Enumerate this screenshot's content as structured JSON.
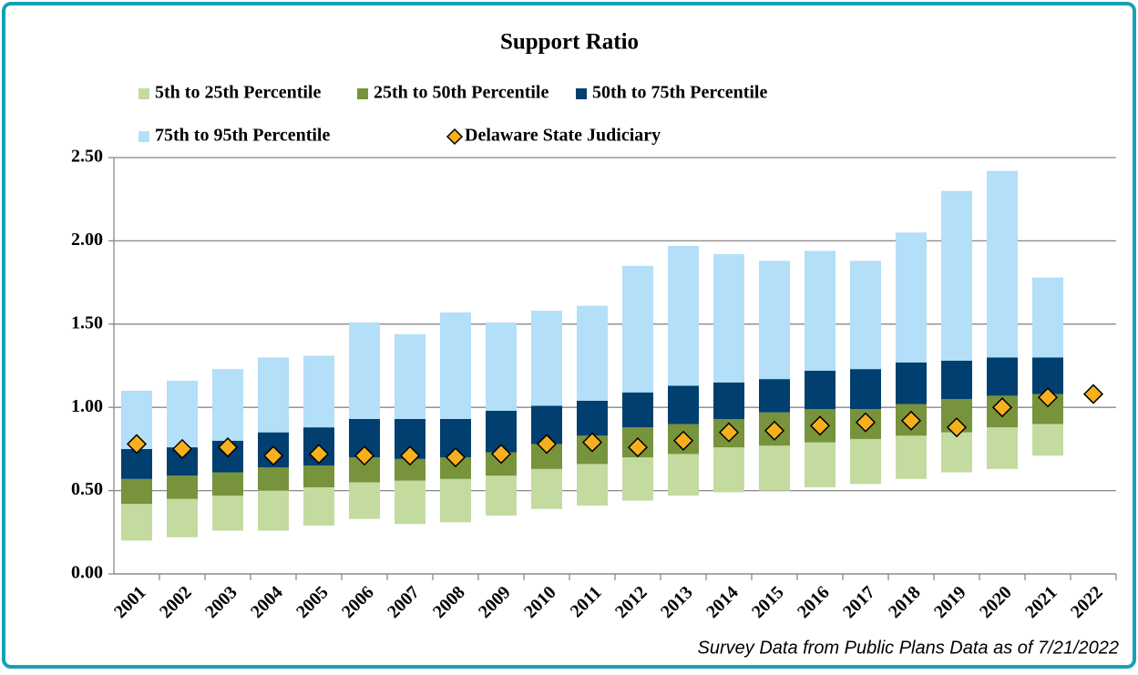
{
  "chart_data": {
    "type": "bar",
    "title": "Support Ratio",
    "footnote": "Survey Data from Public Plans Data as of 7/21/2022",
    "categories": [
      "2001",
      "2002",
      "2003",
      "2004",
      "2005",
      "2006",
      "2007",
      "2008",
      "2009",
      "2010",
      "2011",
      "2012",
      "2013",
      "2014",
      "2015",
      "2016",
      "2017",
      "2018",
      "2019",
      "2020",
      "2021",
      "2022"
    ],
    "series": [
      {
        "name": "5th to 25th Percentile",
        "type": "bar",
        "color": "#c4dba0",
        "values": [
          [
            0.2,
            0.42
          ],
          [
            0.22,
            0.45
          ],
          [
            0.26,
            0.47
          ],
          [
            0.26,
            0.5
          ],
          [
            0.29,
            0.52
          ],
          [
            0.33,
            0.55
          ],
          [
            0.3,
            0.56
          ],
          [
            0.31,
            0.57
          ],
          [
            0.35,
            0.59
          ],
          [
            0.39,
            0.63
          ],
          [
            0.41,
            0.66
          ],
          [
            0.44,
            0.7
          ],
          [
            0.47,
            0.72
          ],
          [
            0.49,
            0.76
          ],
          [
            0.5,
            0.77
          ],
          [
            0.52,
            0.79
          ],
          [
            0.54,
            0.81
          ],
          [
            0.57,
            0.83
          ],
          [
            0.61,
            0.85
          ],
          [
            0.63,
            0.88
          ],
          [
            0.71,
            0.9
          ],
          null
        ]
      },
      {
        "name": "25th to 50th Percentile",
        "type": "bar",
        "color": "#77933c",
        "values": [
          [
            0.42,
            0.57
          ],
          [
            0.45,
            0.59
          ],
          [
            0.47,
            0.61
          ],
          [
            0.5,
            0.64
          ],
          [
            0.52,
            0.65
          ],
          [
            0.55,
            0.7
          ],
          [
            0.56,
            0.69
          ],
          [
            0.57,
            0.7
          ],
          [
            0.59,
            0.73
          ],
          [
            0.63,
            0.78
          ],
          [
            0.66,
            0.83
          ],
          [
            0.7,
            0.88
          ],
          [
            0.72,
            0.9
          ],
          [
            0.76,
            0.93
          ],
          [
            0.77,
            0.97
          ],
          [
            0.79,
            0.99
          ],
          [
            0.81,
            0.99
          ],
          [
            0.83,
            1.02
          ],
          [
            0.85,
            1.05
          ],
          [
            0.88,
            1.07
          ],
          [
            0.9,
            1.08
          ],
          null
        ]
      },
      {
        "name": "50th to 75th Percentile",
        "type": "bar",
        "color": "#003f6f",
        "values": [
          [
            0.57,
            0.75
          ],
          [
            0.59,
            0.76
          ],
          [
            0.61,
            0.8
          ],
          [
            0.64,
            0.85
          ],
          [
            0.65,
            0.88
          ],
          [
            0.7,
            0.93
          ],
          [
            0.69,
            0.93
          ],
          [
            0.7,
            0.93
          ],
          [
            0.73,
            0.98
          ],
          [
            0.78,
            1.01
          ],
          [
            0.83,
            1.04
          ],
          [
            0.88,
            1.09
          ],
          [
            0.9,
            1.13
          ],
          [
            0.93,
            1.15
          ],
          [
            0.97,
            1.17
          ],
          [
            0.99,
            1.22
          ],
          [
            0.99,
            1.23
          ],
          [
            1.02,
            1.27
          ],
          [
            1.05,
            1.28
          ],
          [
            1.07,
            1.3
          ],
          [
            1.08,
            1.3
          ],
          null
        ]
      },
      {
        "name": "75th to 95th Percentile",
        "type": "bar",
        "color": "#b3dff9",
        "values": [
          [
            0.75,
            1.1
          ],
          [
            0.76,
            1.16
          ],
          [
            0.8,
            1.23
          ],
          [
            0.85,
            1.3
          ],
          [
            0.88,
            1.31
          ],
          [
            0.93,
            1.51
          ],
          [
            0.93,
            1.44
          ],
          [
            0.93,
            1.57
          ],
          [
            0.98,
            1.51
          ],
          [
            1.01,
            1.58
          ],
          [
            1.04,
            1.61
          ],
          [
            1.09,
            1.85
          ],
          [
            1.13,
            1.97
          ],
          [
            1.15,
            1.92
          ],
          [
            1.17,
            1.88
          ],
          [
            1.22,
            1.94
          ],
          [
            1.23,
            1.88
          ],
          [
            1.27,
            2.05
          ],
          [
            1.28,
            2.3
          ],
          [
            1.3,
            2.42
          ],
          [
            1.3,
            1.78
          ],
          null
        ]
      },
      {
        "name": "Delaware State Judiciary",
        "type": "scatter",
        "color": "#f6b01e",
        "values": [
          0.78,
          0.75,
          0.76,
          0.71,
          0.72,
          0.71,
          0.71,
          0.7,
          0.72,
          0.78,
          0.79,
          0.76,
          0.8,
          0.85,
          0.86,
          0.89,
          0.91,
          0.92,
          0.88,
          1.0,
          1.06,
          1.08
        ]
      }
    ],
    "ylim": [
      0,
      2.5
    ],
    "yticks": [
      {
        "value": 0,
        "label": "0.00"
      },
      {
        "value": 0.5,
        "label": "0.50"
      },
      {
        "value": 1,
        "label": "1.00"
      },
      {
        "value": 1.5,
        "label": "1.50"
      },
      {
        "value": 2,
        "label": "2.00"
      },
      {
        "value": 2.5,
        "label": "2.50"
      }
    ],
    "grid": true
  }
}
